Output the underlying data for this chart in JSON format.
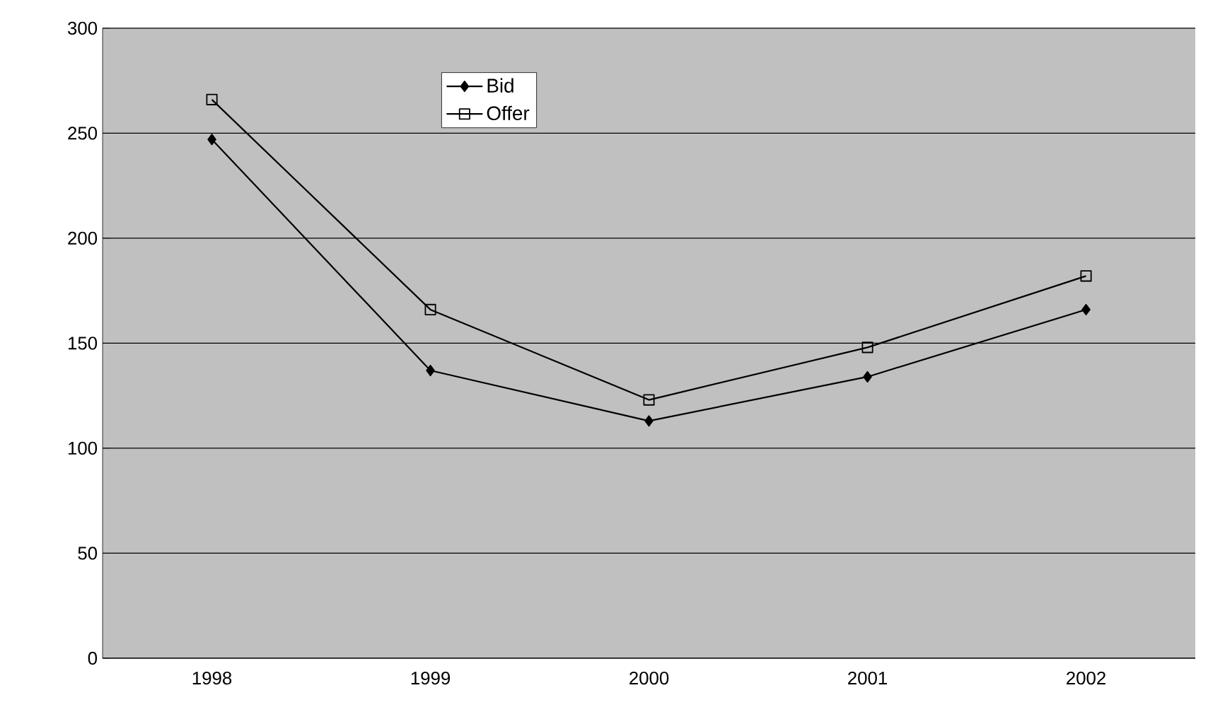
{
  "chart_data": {
    "type": "line",
    "categories": [
      "1998",
      "1999",
      "2000",
      "2001",
      "2002"
    ],
    "series": [
      {
        "name": "Bid",
        "color": "#000000",
        "marker": "diamond",
        "values": [
          247,
          137,
          113,
          134,
          166
        ]
      },
      {
        "name": "Offer",
        "color": "#000000",
        "marker": "square",
        "values": [
          266,
          166,
          123,
          148,
          182
        ]
      }
    ],
    "ylim": [
      0,
      300
    ],
    "yticks": [
      0,
      50,
      100,
      150,
      200,
      250,
      300
    ],
    "grid": "y",
    "legend": "top"
  }
}
